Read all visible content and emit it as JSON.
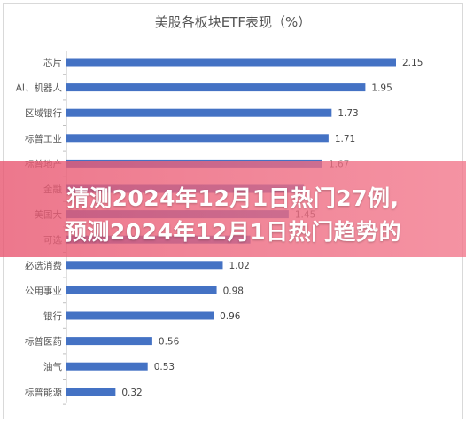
{
  "chart_data": {
    "type": "bar",
    "orientation": "horizontal",
    "title": "美股各板块ETF表现（%）",
    "categories": [
      "芯片",
      "AI、机器人",
      "区域银行",
      "标普工业",
      "标普地产",
      "金融",
      "美国大",
      "可选",
      "必选消费",
      "公用事业",
      "银行",
      "标普医药",
      "油气",
      "标普能源"
    ],
    "values": [
      2.15,
      1.95,
      1.73,
      1.71,
      1.67,
      1.55,
      1.45,
      1.2,
      1.02,
      0.98,
      0.96,
      0.56,
      0.53,
      0.32
    ],
    "value_labels": [
      "2.15",
      "1.95",
      "1.73",
      "1.71",
      "1.67",
      "",
      "1.45",
      "",
      "1.02",
      "0.98",
      "0.96",
      "0.56",
      "0.53",
      "0.32"
    ],
    "bar_color": "#4472C4",
    "xlim": [
      0,
      2.5
    ],
    "grid": false,
    "legend": "none"
  },
  "overlay": {
    "line1": "猜测2024年12月1日热门27例,",
    "line2": "预测2024年12月1日热门趋势的"
  }
}
